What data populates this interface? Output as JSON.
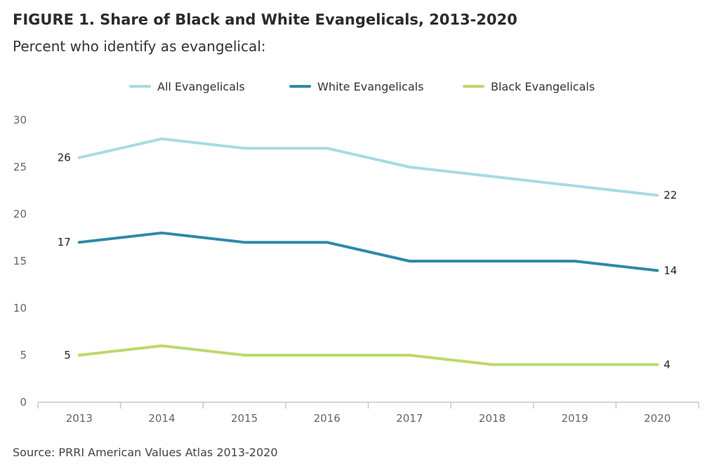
{
  "title": "FIGURE 1. Share of Black and White Evangelicals, 2013-2020",
  "subtitle": "Percent who identify as evangelical:",
  "source": "Source: PRRI American Values Atlas 2013-2020",
  "chart_data": {
    "type": "line",
    "title": "FIGURE 1. Share of Black and White Evangelicals, 2013-2020",
    "subtitle": "Percent who identify as evangelical:",
    "xlabel": "",
    "ylabel": "",
    "x": [
      "2013",
      "2014",
      "2015",
      "2016",
      "2017",
      "2018",
      "2019",
      "2020"
    ],
    "ylim": [
      0,
      30
    ],
    "yticks": [
      0,
      5,
      10,
      15,
      20,
      25,
      30
    ],
    "grid": false,
    "legend_position": "top-center",
    "series": [
      {
        "name": "All Evangelicals",
        "color": "#a6dbe3",
        "values": [
          26,
          28,
          27,
          27,
          25,
          24,
          23,
          22
        ]
      },
      {
        "name": "White Evangelicals",
        "color": "#2e8aa8",
        "values": [
          17,
          18,
          17,
          17,
          15,
          15,
          15,
          14
        ]
      },
      {
        "name": "Black Evangelicals",
        "color": "#bcd96b",
        "values": [
          5,
          6,
          5,
          5,
          5,
          4,
          4,
          4
        ]
      }
    ],
    "annotations": [
      {
        "series": "All Evangelicals",
        "x": "2013",
        "text": "26"
      },
      {
        "series": "All Evangelicals",
        "x": "2020",
        "text": "22"
      },
      {
        "series": "White Evangelicals",
        "x": "2013",
        "text": "17"
      },
      {
        "series": "White Evangelicals",
        "x": "2020",
        "text": "14"
      },
      {
        "series": "Black Evangelicals",
        "x": "2013",
        "text": "5"
      },
      {
        "series": "Black Evangelicals",
        "x": "2020",
        "text": "4"
      }
    ]
  }
}
